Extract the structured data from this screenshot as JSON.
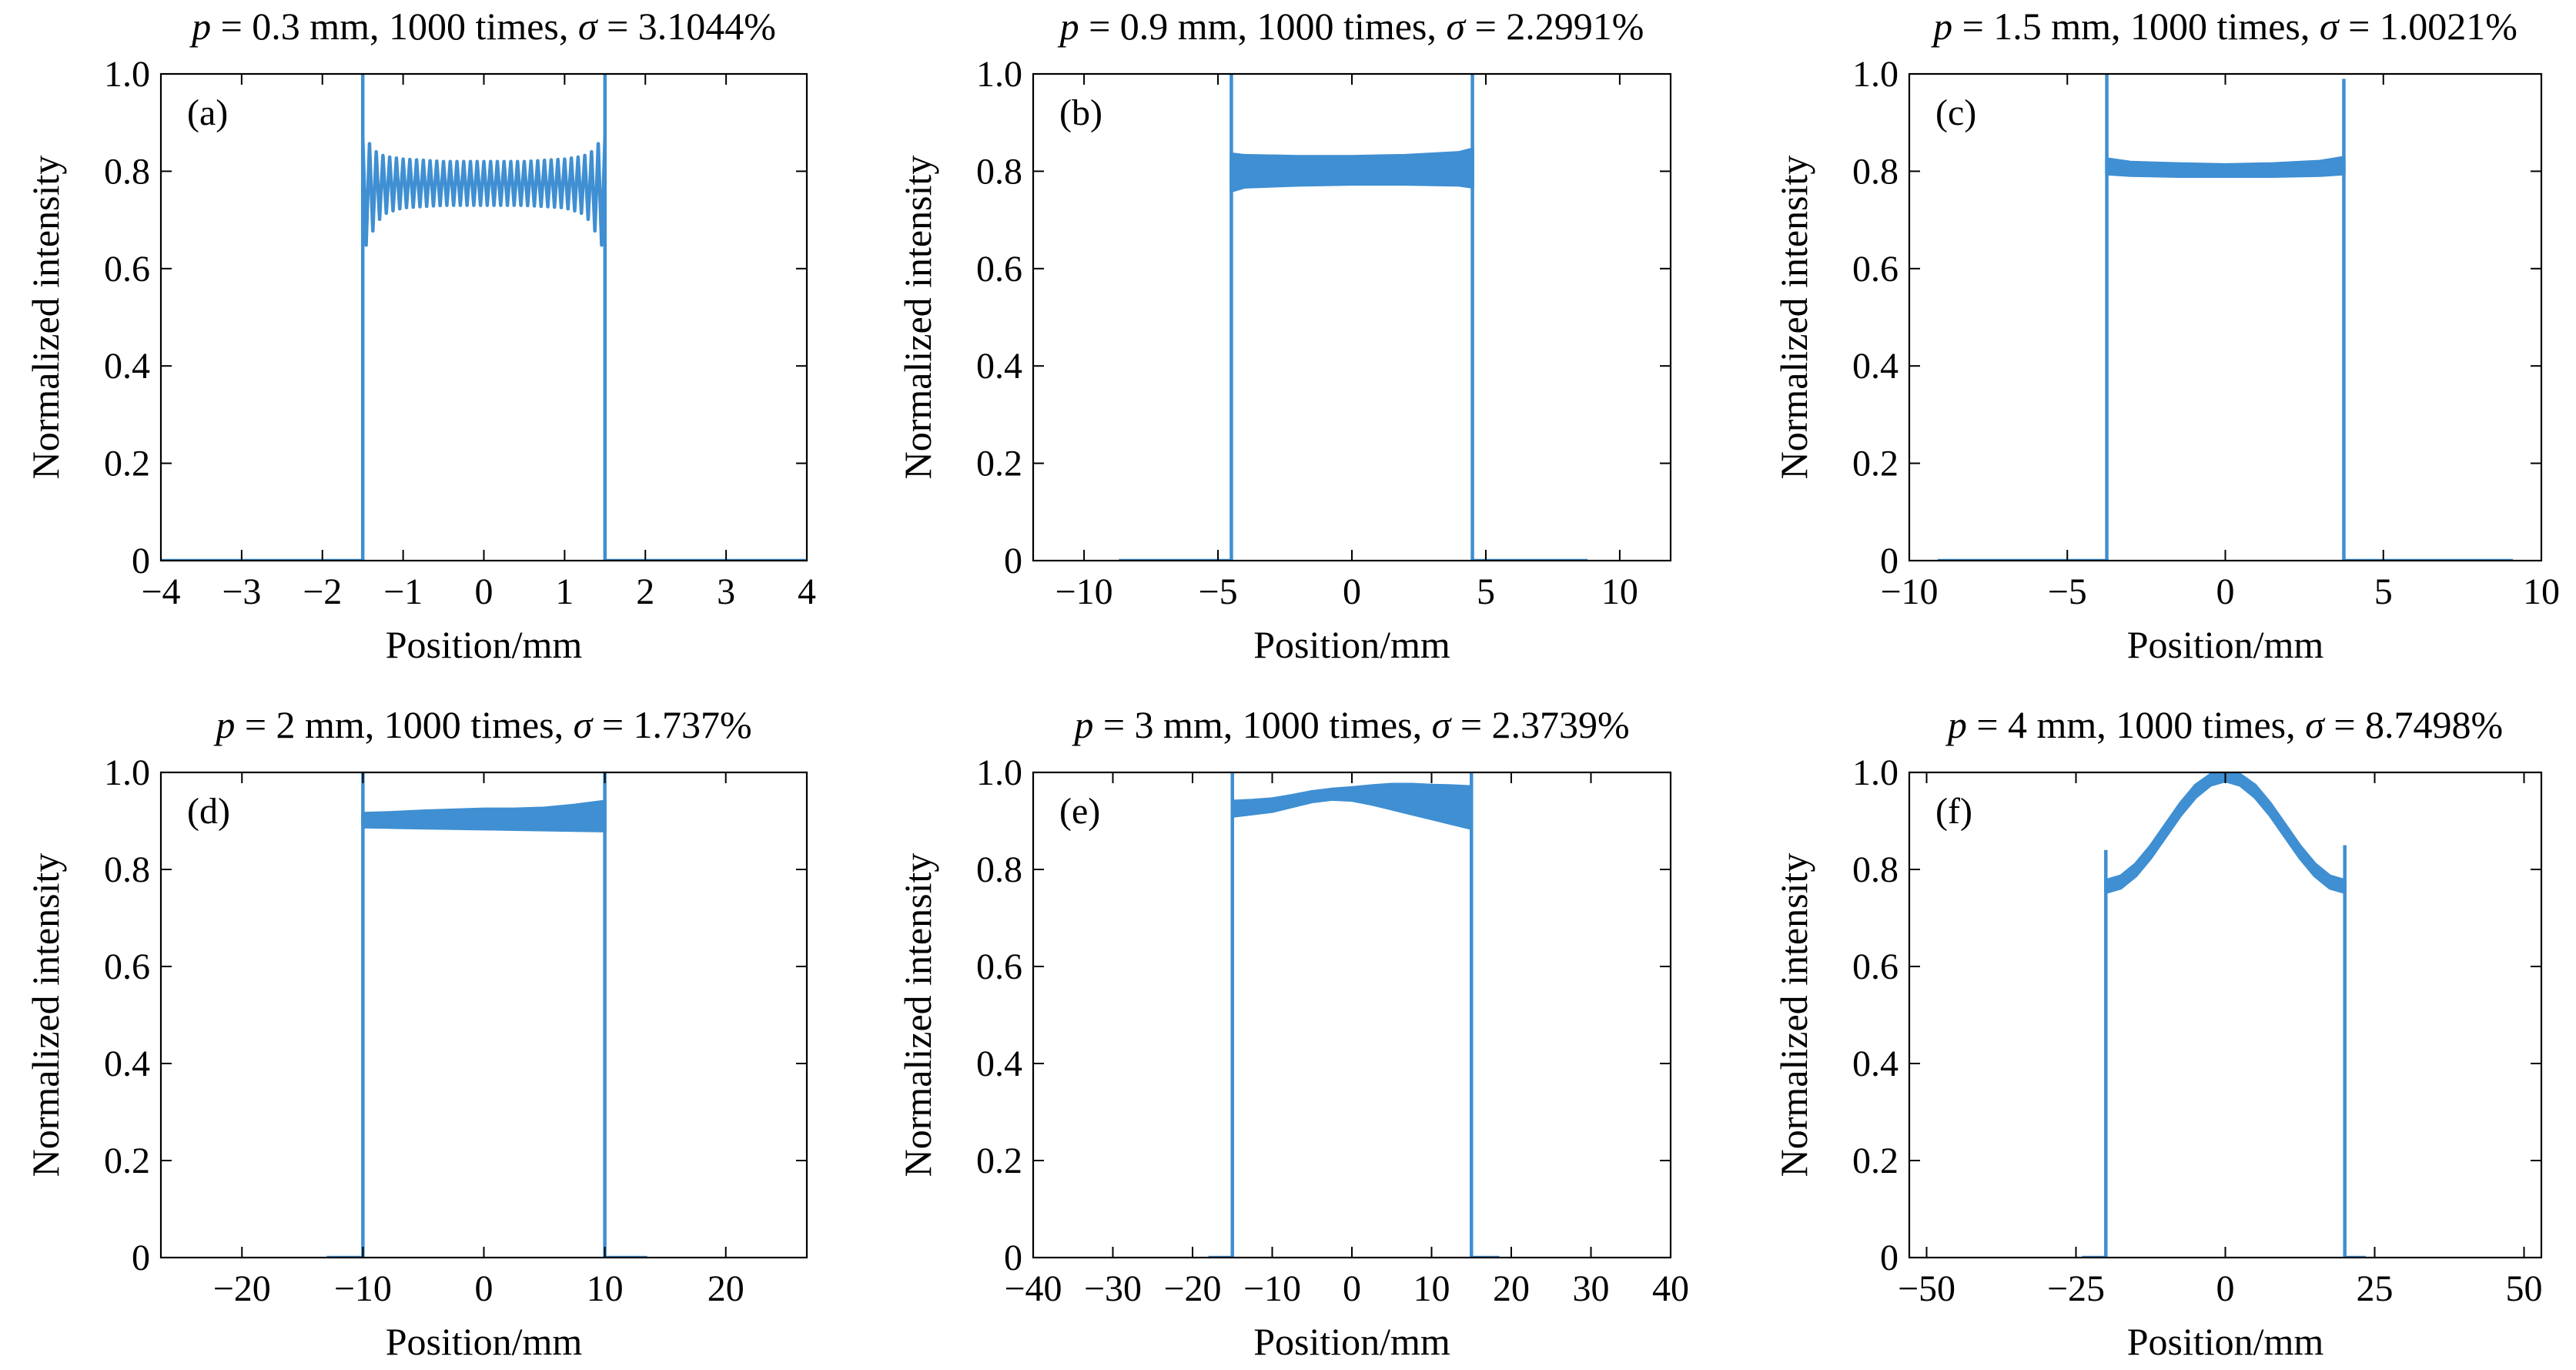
{
  "figure": {
    "line_color": "#3f8fd2",
    "frame_color": "#000000",
    "background": "#ffffff"
  },
  "chart_data": [
    {
      "type": "line",
      "panel_label": "(a)",
      "title": "p = 0.3 mm, 1000 times, σ = 3.1044%",
      "xlabel": "Position/mm",
      "ylabel": "Normalized intensity",
      "xlim": [
        -4,
        4
      ],
      "ylim": [
        0,
        1.0
      ],
      "xticks": [
        -4,
        -3,
        -2,
        -1,
        0,
        1,
        2,
        3,
        4
      ],
      "xtick_labels": [
        "−4",
        "−3",
        "−2",
        "−1",
        "0",
        "1",
        "2",
        "3",
        "4"
      ],
      "yticks": [
        0,
        0.2,
        0.4,
        0.6,
        0.8,
        1.0
      ],
      "ytick_labels": [
        "0",
        "0.2",
        "0.4",
        "0.6",
        "0.8",
        "1.0"
      ],
      "zero_intensity_range": [
        -4,
        4
      ],
      "edge_peaks": {
        "x": [
          -1.5,
          1.5
        ],
        "y": [
          1.0,
          1.0
        ]
      },
      "band": {
        "x": [
          -1.5,
          -1.45,
          -1.4,
          -1.3,
          -1.2,
          -1.0,
          -0.5,
          0,
          0.5,
          1.0,
          1.2,
          1.3,
          1.4,
          1.45,
          1.5
        ],
        "upper": [
          0.87,
          0.87,
          0.85,
          0.835,
          0.83,
          0.825,
          0.82,
          0.82,
          0.82,
          0.825,
          0.83,
          0.835,
          0.85,
          0.87,
          0.87
        ],
        "lower": [
          0.64,
          0.65,
          0.67,
          0.7,
          0.715,
          0.725,
          0.73,
          0.73,
          0.73,
          0.725,
          0.715,
          0.7,
          0.67,
          0.65,
          0.64
        ]
      }
    },
    {
      "type": "line",
      "panel_label": "(b)",
      "title": "p = 0.9 mm, 1000 times, σ = 2.2991%",
      "xlabel": "Position/mm",
      "ylabel": "Normalized intensity",
      "xlim": [
        -11.9,
        11.9
      ],
      "ylim": [
        0,
        1.0
      ],
      "xticks": [
        -10,
        -5,
        0,
        5,
        10
      ],
      "xtick_labels": [
        "−10",
        "−5",
        "0",
        "5",
        "10"
      ],
      "yticks": [
        0,
        0.2,
        0.4,
        0.6,
        0.8,
        1.0
      ],
      "ytick_labels": [
        "0",
        "0.2",
        "0.4",
        "0.6",
        "0.8",
        "1.0"
      ],
      "zero_intensity_range": [
        -8.7,
        8.8
      ],
      "edge_peaks": {
        "x": [
          -4.5,
          4.5
        ],
        "y": [
          1.0,
          1.0
        ]
      },
      "band": {
        "x": [
          -4.5,
          -4,
          -2,
          0,
          2,
          4,
          4.5
        ],
        "upper": [
          0.835,
          0.832,
          0.83,
          0.83,
          0.832,
          0.838,
          0.845
        ],
        "lower": [
          0.76,
          0.768,
          0.772,
          0.774,
          0.774,
          0.772,
          0.768
        ]
      }
    },
    {
      "type": "line",
      "panel_label": "(c)",
      "title": "p = 1.5 mm, 1000 times, σ = 1.0021%",
      "xlabel": "Position/mm",
      "ylabel": "Normalized intensity",
      "xlim": [
        -10,
        10
      ],
      "ylim": [
        0,
        1.0
      ],
      "xticks": [
        -10,
        -5,
        0,
        5,
        10
      ],
      "xtick_labels": [
        "−10",
        "−5",
        "0",
        "5",
        "10"
      ],
      "yticks": [
        0,
        0.2,
        0.4,
        0.6,
        0.8,
        1.0
      ],
      "ytick_labels": [
        "0",
        "0.2",
        "0.4",
        "0.6",
        "0.8",
        "1.0"
      ],
      "zero_intensity_range": [
        -9.1,
        9.1
      ],
      "edge_peaks": {
        "x": [
          -3.75,
          3.75
        ],
        "y": [
          1.0,
          0.99
        ]
      },
      "band": {
        "x": [
          -3.75,
          -3,
          -1.5,
          0,
          1.5,
          3,
          3.75
        ],
        "upper": [
          0.825,
          0.818,
          0.815,
          0.813,
          0.815,
          0.82,
          0.828
        ],
        "lower": [
          0.795,
          0.792,
          0.79,
          0.79,
          0.79,
          0.792,
          0.795
        ]
      }
    },
    {
      "type": "line",
      "panel_label": "(d)",
      "title": "p = 2 mm, 1000 times, σ = 1.737%",
      "xlabel": "Position/mm",
      "ylabel": "Normalized intensity",
      "xlim": [
        -26.7,
        26.7
      ],
      "ylim": [
        0,
        1.0
      ],
      "xticks": [
        -20,
        -10,
        0,
        10,
        20
      ],
      "xtick_labels": [
        "−20",
        "−10",
        "0",
        "10",
        "20"
      ],
      "yticks": [
        0,
        0.2,
        0.4,
        0.6,
        0.8,
        1.0
      ],
      "ytick_labels": [
        "0",
        "0.2",
        "0.4",
        "0.6",
        "0.8",
        "1.0"
      ],
      "zero_intensity_range": [
        -13,
        13.5
      ],
      "edge_peaks": {
        "x": [
          -10,
          10
        ],
        "y": [
          1.0,
          1.0
        ]
      },
      "band": {
        "x": [
          -10,
          -7.5,
          -5,
          -2.5,
          0,
          2.5,
          5,
          7.5,
          10
        ],
        "upper": [
          0.915,
          0.917,
          0.92,
          0.922,
          0.924,
          0.924,
          0.926,
          0.932,
          0.94
        ],
        "lower": [
          0.888,
          0.887,
          0.886,
          0.885,
          0.884,
          0.883,
          0.882,
          0.881,
          0.88
        ]
      }
    },
    {
      "type": "line",
      "panel_label": "(e)",
      "title": "p = 3 mm, 1000 times, σ = 2.3739%",
      "xlabel": "Position/mm",
      "ylabel": "Normalized intensity",
      "xlim": [
        -40,
        40
      ],
      "ylim": [
        0,
        1.0
      ],
      "xticks": [
        -40,
        -30,
        -20,
        -10,
        0,
        10,
        20,
        30,
        40
      ],
      "xtick_labels": [
        "−40",
        "−30",
        "−20",
        "−10",
        "0",
        "10",
        "20",
        "30",
        "40"
      ],
      "yticks": [
        0,
        0.2,
        0.4,
        0.6,
        0.8,
        1.0
      ],
      "ytick_labels": [
        "0",
        "0.2",
        "0.4",
        "0.6",
        "0.8",
        "1.0"
      ],
      "zero_intensity_range": [
        -18,
        18.5
      ],
      "edge_peaks": {
        "x": [
          -15,
          15
        ],
        "y": [
          1.0,
          1.0
        ]
      },
      "band": {
        "x": [
          -15,
          -12.5,
          -10,
          -7.5,
          -5,
          -2.5,
          0,
          2.5,
          5,
          7.5,
          10,
          12.5,
          15
        ],
        "upper": [
          0.94,
          0.942,
          0.945,
          0.952,
          0.96,
          0.965,
          0.968,
          0.972,
          0.975,
          0.975,
          0.973,
          0.972,
          0.97
        ],
        "lower": [
          0.91,
          0.915,
          0.92,
          0.93,
          0.94,
          0.945,
          0.943,
          0.935,
          0.925,
          0.915,
          0.905,
          0.895,
          0.885
        ]
      }
    },
    {
      "type": "line",
      "panel_label": "(f)",
      "title": "p = 4 mm, 1000 times, σ = 8.7498%",
      "xlabel": "Position/mm",
      "ylabel": "Normalized intensity",
      "xlim": [
        -52.9,
        52.9
      ],
      "ylim": [
        0,
        1.0
      ],
      "xticks": [
        -50,
        -25,
        0,
        25,
        50
      ],
      "xtick_labels": [
        "−50",
        "−25",
        "0",
        "25",
        "50"
      ],
      "yticks": [
        0,
        0.2,
        0.4,
        0.6,
        0.8,
        1.0
      ],
      "ytick_labels": [
        "0",
        "0.2",
        "0.4",
        "0.6",
        "0.8",
        "1.0"
      ],
      "zero_intensity_range": [
        -24,
        23.5
      ],
      "edge_peaks": {
        "x": [
          -20,
          20
        ],
        "y": [
          0.84,
          0.85
        ]
      },
      "band": {
        "x": [
          -20,
          -17.5,
          -15,
          -12.5,
          -10,
          -7.5,
          -5,
          -2.5,
          0,
          2.5,
          5,
          7.5,
          10,
          12.5,
          15,
          17.5,
          20
        ],
        "upper": [
          0.777,
          0.786,
          0.811,
          0.848,
          0.892,
          0.936,
          0.973,
          0.995,
          1.0,
          0.995,
          0.973,
          0.936,
          0.892,
          0.848,
          0.811,
          0.786,
          0.777
        ],
        "lower": [
          0.753,
          0.762,
          0.787,
          0.824,
          0.868,
          0.912,
          0.949,
          0.974,
          0.983,
          0.974,
          0.949,
          0.912,
          0.868,
          0.824,
          0.787,
          0.762,
          0.753
        ]
      }
    }
  ]
}
